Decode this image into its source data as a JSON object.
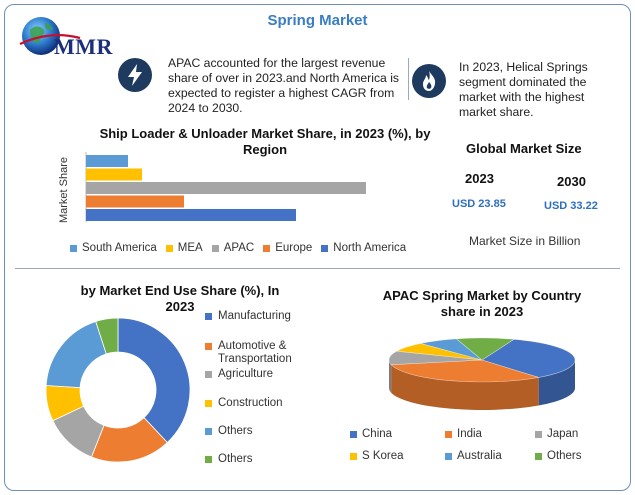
{
  "header": {
    "title": "Spring Market",
    "logo_text": "MMR"
  },
  "info": {
    "left_text": "APAC accounted for the largest revenue share of over in 2023.and North America is expected to register a highest CAGR from 2024 to 2030.",
    "right_text": "In 2023, Helical Springs segment dominated the market with the highest market share."
  },
  "global_market": {
    "title": "Global Market Size",
    "year_1": "2023",
    "year_2": "2030",
    "value_1": "USD 23.85",
    "value_2": "USD 33.22",
    "note": "Market Size in Billion"
  },
  "colors": {
    "accent": "#3b7dc4",
    "frame": "#6f8fb8"
  },
  "chart_data": [
    {
      "type": "bar",
      "orientation": "horizontal",
      "title": "Ship Loader & Unloader Market Share, in 2023 (%), by Region",
      "ylabel": "Market Share",
      "xlabel": "",
      "legend_position": "bottom",
      "grid": false,
      "categories": [
        "South America",
        "MEA",
        "APAC",
        "Europe",
        "North America"
      ],
      "values": [
        15,
        20,
        100,
        35,
        75
      ],
      "colors": [
        "#5b9bd5",
        "#ffc000",
        "#a5a5a5",
        "#ed7d31",
        "#4472c4"
      ]
    },
    {
      "type": "pie",
      "variant": "donut",
      "title": "by Market End Use Share (%), In 2023",
      "legend_position": "right",
      "categories": [
        "Manufacturing",
        "Automotive & Transportation",
        "Agriculture",
        "Construction",
        "Others",
        "Others"
      ],
      "values": [
        38,
        18,
        12,
        8,
        19,
        5
      ],
      "colors": [
        "#4472c4",
        "#ed7d31",
        "#a5a5a5",
        "#ffc000",
        "#5b9bd5",
        "#70ad47"
      ]
    },
    {
      "type": "pie",
      "variant": "3d",
      "title": "APAC Spring Market by Country share in 2023",
      "legend_position": "bottom",
      "categories": [
        "China",
        "India",
        "Japan",
        "S Korea",
        "Australia",
        "Others"
      ],
      "values": [
        34,
        32,
        10,
        7,
        7,
        10
      ],
      "colors": [
        "#4472c4",
        "#ed7d31",
        "#a5a5a5",
        "#ffc000",
        "#5b9bd5",
        "#70ad47"
      ]
    }
  ]
}
